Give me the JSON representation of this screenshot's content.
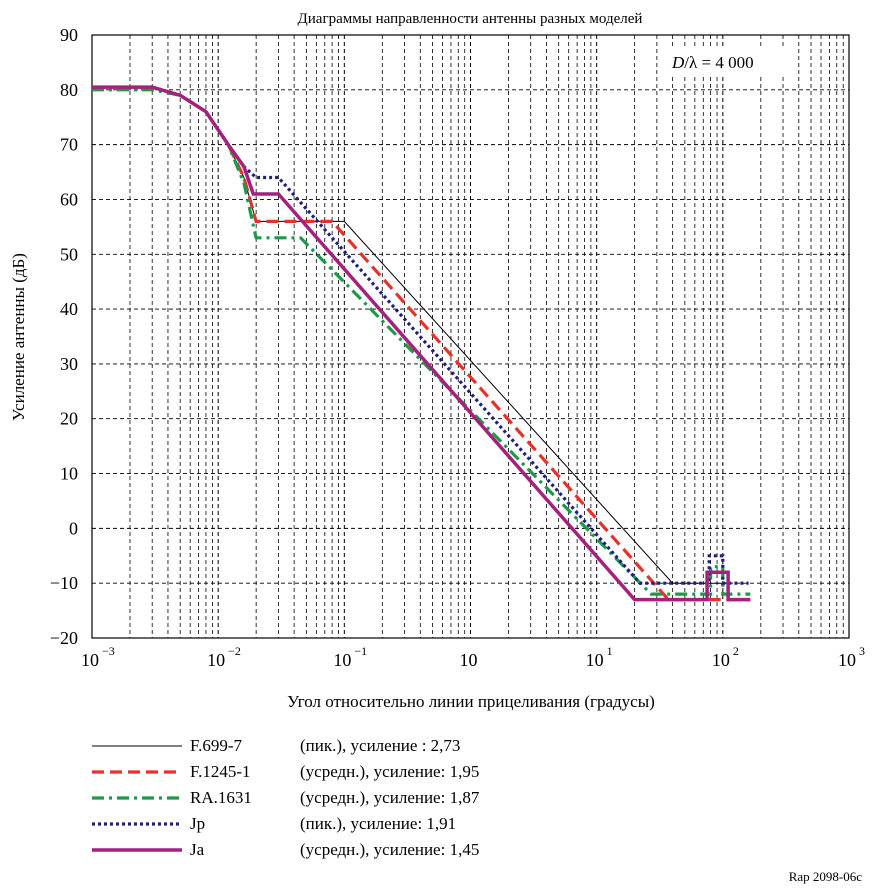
{
  "chart_data": {
    "type": "line",
    "title": "Диаграммы направленности антенны разных моделей",
    "annotation": {
      "D": "D",
      "rest": "/λ = 4 000"
    },
    "xlabel": "Угол относительно линии прицеливания (градусы)",
    "ylabel": "Усиление антенны (дБ)",
    "x_scale": "log",
    "xlim": [
      0.001,
      1000
    ],
    "ylim": [
      -20,
      90
    ],
    "y_ticks": [
      {
        "value": -20,
        "label": "−20"
      },
      {
        "value": -10,
        "label": "−10"
      },
      {
        "value": 0,
        "label": "0"
      },
      {
        "value": 10,
        "label": "10"
      },
      {
        "value": 20,
        "label": "20"
      },
      {
        "value": 30,
        "label": "30"
      },
      {
        "value": 40,
        "label": "40"
      },
      {
        "value": 50,
        "label": "50"
      },
      {
        "value": 60,
        "label": "60"
      },
      {
        "value": 70,
        "label": "70"
      },
      {
        "value": 80,
        "label": "80"
      },
      {
        "value": 90,
        "label": "90"
      }
    ],
    "x_ticks": [
      {
        "value": 0.001,
        "base": "10",
        "exp": "−3"
      },
      {
        "value": 0.01,
        "base": "10",
        "exp": "−2"
      },
      {
        "value": 0.1,
        "base": "10",
        "exp": "−1"
      },
      {
        "value": 1,
        "base": "10",
        "exp": ""
      },
      {
        "value": 10,
        "base": "10",
        "exp": "1"
      },
      {
        "value": 100,
        "base": "10",
        "exp": "2"
      },
      {
        "value": 1000,
        "base": "10",
        "exp": "3"
      }
    ],
    "grid": true,
    "legend_position": "bottom",
    "series": [
      {
        "name": "F.699-7",
        "desc": "(пик.), усиление : 2,73",
        "color": "#000000",
        "style": "solid-thin",
        "points": [
          [
            0.001,
            80.5
          ],
          [
            0.003,
            80.5
          ],
          [
            0.005,
            79
          ],
          [
            0.008,
            76
          ],
          [
            0.012,
            70
          ],
          [
            0.016,
            64
          ],
          [
            0.02,
            56
          ],
          [
            0.1,
            56
          ],
          [
            40,
            -10
          ],
          [
            110,
            -10
          ]
        ]
      },
      {
        "name": "F.1245-1",
        "desc": "(усредн.), усиление: 1,95",
        "color": "#e8312a",
        "style": "dashed",
        "points": [
          [
            0.001,
            80.5
          ],
          [
            0.003,
            80.5
          ],
          [
            0.005,
            79
          ],
          [
            0.008,
            76
          ],
          [
            0.012,
            70
          ],
          [
            0.016,
            64
          ],
          [
            0.02,
            56
          ],
          [
            0.08,
            56
          ],
          [
            37,
            -13
          ],
          [
            165,
            -13
          ]
        ]
      },
      {
        "name": "RA.1631",
        "desc": "(усредн.), усиление: 1,87",
        "color": "#1c9a4a",
        "style": "dashdot",
        "points": [
          [
            0.001,
            80
          ],
          [
            0.003,
            80
          ],
          [
            0.005,
            79
          ],
          [
            0.008,
            76
          ],
          [
            0.012,
            70
          ],
          [
            0.016,
            63
          ],
          [
            0.02,
            53
          ],
          [
            0.045,
            53
          ],
          [
            27,
            -12
          ],
          [
            80,
            -12
          ],
          [
            80,
            -7
          ],
          [
            100,
            -7
          ],
          [
            100,
            -12
          ],
          [
            165,
            -12
          ]
        ]
      },
      {
        "name": "Jp",
        "desc": "(пик.), усиление: 1,91",
        "color": "#20207a",
        "style": "dotted",
        "points": [
          [
            0.001,
            80.5
          ],
          [
            0.003,
            80.5
          ],
          [
            0.005,
            79
          ],
          [
            0.008,
            76
          ],
          [
            0.012,
            70
          ],
          [
            0.016,
            66
          ],
          [
            0.02,
            64
          ],
          [
            0.03,
            64
          ],
          [
            22,
            -10
          ],
          [
            78,
            -10
          ],
          [
            78,
            -5
          ],
          [
            100,
            -5
          ],
          [
            100,
            -10
          ],
          [
            160,
            -10
          ]
        ]
      },
      {
        "name": "Ja",
        "desc": "(усредн.), усиление: 1,45",
        "color": "#a3227d",
        "style": "solid-thick",
        "points": [
          [
            0.001,
            80.5
          ],
          [
            0.003,
            80.5
          ],
          [
            0.005,
            79
          ],
          [
            0.008,
            76
          ],
          [
            0.012,
            70
          ],
          [
            0.016,
            66
          ],
          [
            0.019,
            61
          ],
          [
            0.03,
            61
          ],
          [
            20,
            -13
          ],
          [
            75,
            -13
          ],
          [
            75,
            -8
          ],
          [
            110,
            -8
          ],
          [
            110,
            -13
          ],
          [
            165,
            -13
          ]
        ]
      }
    ]
  },
  "figure_ref": "Rap 2098-06c"
}
